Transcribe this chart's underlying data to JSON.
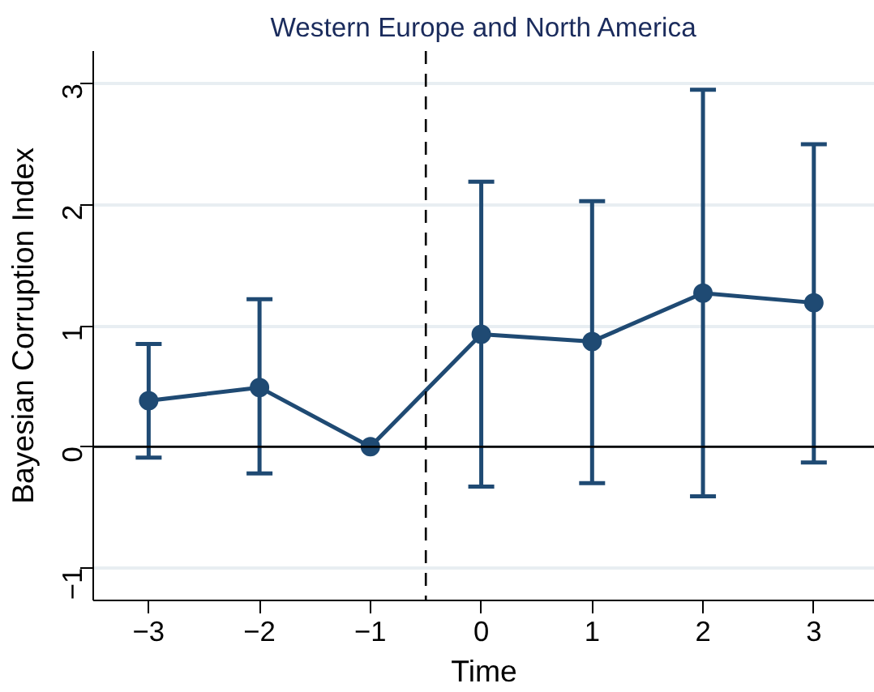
{
  "chart_data": {
    "type": "line",
    "title": "Western Europe and North America",
    "xlabel": "Time",
    "ylabel": "Bayesian Corruption Index",
    "x": [
      -3,
      -2,
      -1,
      0,
      1,
      2,
      3
    ],
    "series": [
      {
        "color": "#1f4a73",
        "values": [
          0.38,
          0.49,
          0,
          0.93,
          0.87,
          1.27,
          1.19
        ],
        "errors": [
          [
            -0.09,
            0.85
          ],
          [
            -0.22,
            1.22
          ],
          null,
          [
            -0.33,
            2.19
          ],
          [
            -0.3,
            2.03
          ],
          [
            -0.41,
            2.95
          ],
          [
            -0.13,
            2.5
          ]
        ]
      }
    ],
    "xlim": [
      -3.5,
      3.55
    ],
    "ylim": [
      -1.27,
      3.27
    ],
    "xticks": [
      -3,
      -2,
      -1,
      0,
      1,
      2,
      3
    ],
    "yticks": [
      -1,
      0,
      1,
      2,
      3
    ],
    "ref_lines": [
      {
        "axis": "x",
        "value": -0.5,
        "color": "#000000",
        "line_style": "dashed"
      },
      {
        "axis": "y",
        "value": 0,
        "color": "#000000",
        "line_style": "solid"
      }
    ],
    "grid": "y",
    "marker": "circle",
    "line_style": "solid"
  }
}
